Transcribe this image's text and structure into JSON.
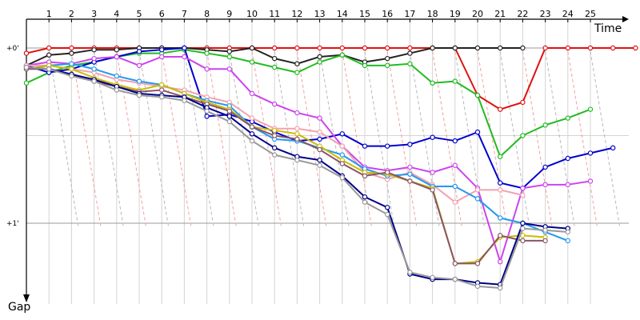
{
  "chart_data": {
    "type": "line",
    "title": "",
    "xlabel": "Time",
    "ylabel": "Gap",
    "x_ticks": [
      "1",
      "2",
      "3",
      "4",
      "5",
      "6",
      "7",
      "8",
      "9",
      "10",
      "11",
      "12",
      "13",
      "14",
      "15",
      "16",
      "17",
      "18",
      "19",
      "20",
      "21",
      "22",
      "23",
      "24",
      "25"
    ],
    "y_ticks": [
      "+0'",
      "+1'"
    ],
    "ylim": [
      0,
      1.4
    ],
    "grid": true,
    "legend": "none",
    "series": [
      {
        "color": "#e01010",
        "values": [
          0.03,
          0.0,
          0.0,
          0.0,
          0.0,
          0.0,
          0.0,
          0.0,
          0.0,
          0.0,
          0.0,
          0.0,
          0.0,
          0.0,
          0.0,
          0.0,
          0.0,
          0.0,
          0.0,
          0.0,
          0.27,
          0.35,
          0.31,
          0.0,
          0.0,
          0.0,
          0.0,
          0.0
        ]
      },
      {
        "color": "#222222",
        "values": [
          0.1,
          0.04,
          0.03,
          0.01,
          0.01,
          0.0,
          0.0,
          0.0,
          0.01,
          0.02,
          0.0,
          0.06,
          0.09,
          0.05,
          0.04,
          0.08,
          0.06,
          0.03,
          0.0,
          0.0,
          0.0,
          0.0,
          0.0
        ]
      },
      {
        "color": "#22bb22",
        "values": [
          0.2,
          0.14,
          0.1,
          0.08,
          0.05,
          0.03,
          0.03,
          0.01,
          0.03,
          0.05,
          0.08,
          0.11,
          0.14,
          0.08,
          0.04,
          0.1,
          0.1,
          0.09,
          0.2,
          0.19,
          0.27,
          0.62,
          0.5,
          0.44,
          0.4,
          0.35
        ]
      },
      {
        "color": "#0000cc",
        "values": [
          0.1,
          0.14,
          0.12,
          0.08,
          0.05,
          0.02,
          0.01,
          0.0,
          0.39,
          0.38,
          0.42,
          0.48,
          0.53,
          0.52,
          0.49,
          0.56,
          0.56,
          0.55,
          0.51,
          0.53,
          0.48,
          0.77,
          0.8,
          0.68,
          0.63,
          0.6,
          0.57
        ]
      },
      {
        "color": "#cc44ee",
        "values": [
          0.1,
          0.08,
          0.09,
          0.06,
          0.05,
          0.1,
          0.05,
          0.05,
          0.12,
          0.12,
          0.26,
          0.32,
          0.37,
          0.4,
          0.56,
          0.68,
          0.7,
          0.68,
          0.71,
          0.67,
          0.8,
          1.22,
          0.8,
          0.78,
          0.78,
          0.76
        ]
      },
      {
        "color": "#f3a2b0",
        "values": [
          0.1,
          0.1,
          0.12,
          0.14,
          0.18,
          0.2,
          0.22,
          0.24,
          0.28,
          0.31,
          0.4,
          0.46,
          0.46,
          0.48,
          0.56,
          0.71,
          0.75,
          0.71,
          0.78,
          0.88,
          0.81,
          0.81,
          0.84
        ]
      },
      {
        "color": "#2299ee",
        "values": [
          0.12,
          0.1,
          0.09,
          0.12,
          0.16,
          0.19,
          0.21,
          0.26,
          0.3,
          0.33,
          0.45,
          0.52,
          0.53,
          0.57,
          0.61,
          0.69,
          0.73,
          0.72,
          0.79,
          0.79,
          0.86,
          0.97,
          1.0,
          1.05,
          1.1
        ]
      },
      {
        "color": "#ccbb00",
        "values": [
          0.12,
          0.1,
          0.12,
          0.17,
          0.21,
          0.24,
          0.21,
          0.26,
          0.31,
          0.35,
          0.45,
          0.47,
          0.49,
          0.56,
          0.64,
          0.71,
          0.72,
          0.76,
          0.8,
          1.23,
          1.22,
          1.08,
          1.07,
          1.08
        ]
      },
      {
        "color": "#885566",
        "values": [
          0.12,
          0.12,
          0.15,
          0.19,
          0.22,
          0.25,
          0.24,
          0.28,
          0.32,
          0.36,
          0.45,
          0.5,
          0.52,
          0.58,
          0.66,
          0.73,
          0.71,
          0.76,
          0.81,
          1.23,
          1.23,
          1.07,
          1.1,
          1.1
        ]
      },
      {
        "color": "#000088",
        "values": [
          0.11,
          0.12,
          0.15,
          0.18,
          0.22,
          0.26,
          0.27,
          0.28,
          0.34,
          0.39,
          0.49,
          0.57,
          0.62,
          0.64,
          0.73,
          0.85,
          0.91,
          1.29,
          1.32,
          1.32,
          1.34,
          1.35,
          1.0,
          1.02,
          1.03
        ]
      },
      {
        "color": "#999999",
        "values": [
          0.11,
          0.12,
          0.16,
          0.19,
          0.24,
          0.27,
          0.28,
          0.3,
          0.36,
          0.42,
          0.53,
          0.61,
          0.64,
          0.67,
          0.74,
          0.88,
          0.95,
          1.28,
          1.31,
          1.32,
          1.36,
          1.37,
          1.03,
          1.04,
          1.05
        ]
      }
    ]
  }
}
